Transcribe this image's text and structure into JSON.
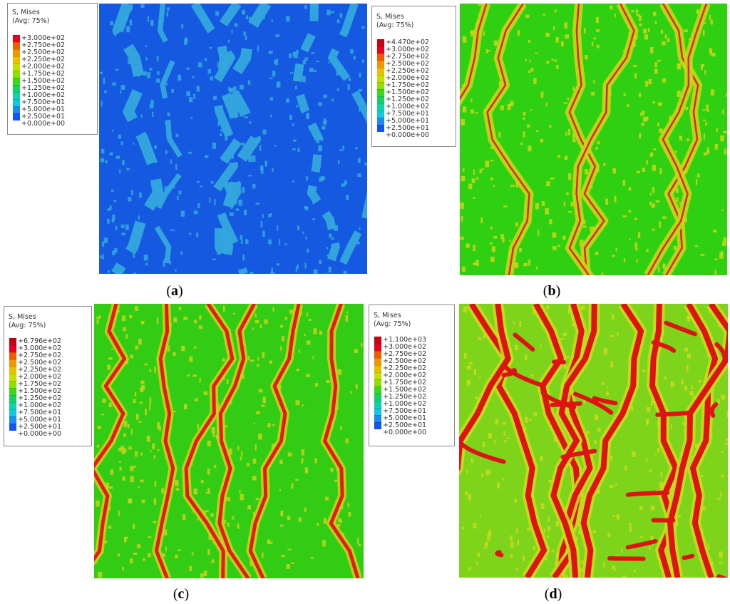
{
  "panels": [
    {
      "id": "a",
      "caption_open": "(",
      "caption_letter": "a",
      "caption_close": ")",
      "legend": {
        "title": "S, Mises",
        "subtitle": "(Avg: 75%)",
        "labels": [
          "+3.000e+02",
          "+2.750e+02",
          "+2.500e+02",
          "+2.250e+02",
          "+2.000e+02",
          "+1.750e+02",
          "+1.500e+02",
          "+1.250e+02",
          "+1.000e+02",
          "+7.500e+01",
          "+5.000e+01",
          "+2.500e+01",
          "+0.000e+00"
        ]
      },
      "field": {
        "base_color": "#1459e0",
        "band_color": "#34a8dc",
        "hot_color": "#34a8dc",
        "style": "patches"
      }
    },
    {
      "id": "b",
      "caption_open": "(",
      "caption_letter": "b",
      "caption_close": ")",
      "legend": {
        "title": "S, Mises",
        "subtitle": "(Avg: 75%)",
        "labels": [
          "+4.470e+02",
          "+3.000e+02",
          "+2.750e+02",
          "+2.500e+02",
          "+2.250e+02",
          "+2.000e+02",
          "+1.750e+02",
          "+1.500e+02",
          "+1.250e+02",
          "+1.000e+02",
          "+7.500e+01",
          "+5.000e+01",
          "+2.500e+01",
          "+0.000e+00"
        ]
      },
      "field": {
        "base_color": "#2fcf12",
        "band_color": "#c8d61a",
        "hot_color": "#e0261a",
        "style": "thin-bands"
      }
    },
    {
      "id": "c",
      "caption_open": "(",
      "caption_letter": "c",
      "caption_close": ")",
      "legend": {
        "title": "S, Mises",
        "subtitle": "(Avg: 75%)",
        "labels": [
          "+6.796e+02",
          "+3.000e+02",
          "+2.750e+02",
          "+2.500e+02",
          "+2.250e+02",
          "+2.000e+02",
          "+1.750e+02",
          "+1.500e+02",
          "+1.250e+02",
          "+1.000e+02",
          "+7.500e+01",
          "+5.000e+01",
          "+2.500e+01",
          "+0.000e+00"
        ]
      },
      "field": {
        "base_color": "#33cc14",
        "band_color": "#c6d21c",
        "hot_color": "#e21d18",
        "style": "bands"
      }
    },
    {
      "id": "d",
      "caption_open": "(",
      "caption_letter": "d",
      "caption_close": ")",
      "legend": {
        "title": "S, Mises",
        "subtitle": "(Avg: 75%)",
        "labels": [
          "+1.100e+03",
          "+3.000e+02",
          "+2.750e+02",
          "+2.500e+02",
          "+2.250e+02",
          "+2.000e+02",
          "+1.750e+02",
          "+1.500e+02",
          "+1.250e+02",
          "+1.000e+02",
          "+7.500e+01",
          "+5.000e+01",
          "+2.500e+01",
          "+0.000e+00"
        ]
      },
      "field": {
        "base_color": "#7ed41a",
        "band_color": "#c8dc1e",
        "hot_color": "#dd1414",
        "style": "network"
      }
    }
  ],
  "legend_colors_13": [
    "#e8001c",
    "#f05a00",
    "#f39500",
    "#e8c000",
    "#c8e000",
    "#8ee000",
    "#3cd81c",
    "#18d060",
    "#10d4a8",
    "#10c8e0",
    "#1c8cf0",
    "#1454f0",
    "#0c14e8"
  ],
  "legend_colors_14": [
    "#c80014",
    "#e8001c",
    "#f05a00",
    "#f39500",
    "#e8c000",
    "#c8e000",
    "#8ee000",
    "#3cd81c",
    "#18d060",
    "#10d4a8",
    "#10c8e0",
    "#1c8cf0",
    "#1454f0",
    "#0c14e8"
  ]
}
